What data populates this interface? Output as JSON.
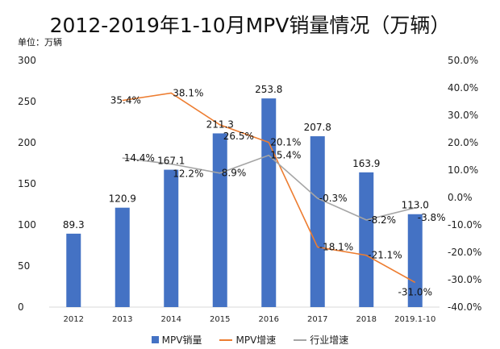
{
  "chart_data": {
    "type": "bar+line",
    "title": "2012-2019年1-10月MPV销量情况（万辆）",
    "unit_label": "单位：万辆",
    "categories": [
      "2012",
      "2013",
      "2014",
      "2015",
      "2016",
      "2017",
      "2018",
      "2019.1-10"
    ],
    "left_axis": {
      "ylim": [
        0,
        300
      ],
      "ticks": [
        "0",
        "50",
        "100",
        "150",
        "200",
        "250",
        "300"
      ]
    },
    "right_axis": {
      "ylim": [
        -40,
        50
      ],
      "ticks": [
        "-40.0%",
        "-30.0%",
        "-20.0%",
        "-10.0%",
        "0.0%",
        "10.0%",
        "20.0%",
        "30.0%",
        "40.0%",
        "50.0%"
      ]
    },
    "grid": false,
    "legend_position": "bottom",
    "series": [
      {
        "name": "MPV销量",
        "kind": "bar",
        "axis": "left",
        "color": "#4472C4",
        "values": [
          89.3,
          120.9,
          167.1,
          211.3,
          253.8,
          207.8,
          163.9,
          113.0
        ],
        "labels": [
          "89.3",
          "120.9",
          "167.1",
          "211.3",
          "253.8",
          "207.8",
          "163.9",
          "113.0"
        ]
      },
      {
        "name": "MPV增速",
        "kind": "line",
        "axis": "right",
        "color": "#ED7D31",
        "values": [
          null,
          35.4,
          38.1,
          26.5,
          20.1,
          -18.1,
          -21.1,
          -31.0
        ],
        "labels": [
          null,
          "35.4%",
          "38.1%",
          "26.5%",
          "20.1%",
          "-18.1%",
          "-21.1%",
          "-31.0%"
        ]
      },
      {
        "name": "行业增速",
        "kind": "line",
        "axis": "right",
        "color": "#A5A5A5",
        "values": [
          null,
          14.4,
          12.2,
          8.9,
          15.4,
          -0.3,
          -8.2,
          -3.8
        ],
        "labels": [
          null,
          "14.4%",
          "12.2%",
          "8.9%",
          "15.4%",
          "-0.3%",
          "-8.2%",
          "-3.8%"
        ]
      }
    ]
  }
}
